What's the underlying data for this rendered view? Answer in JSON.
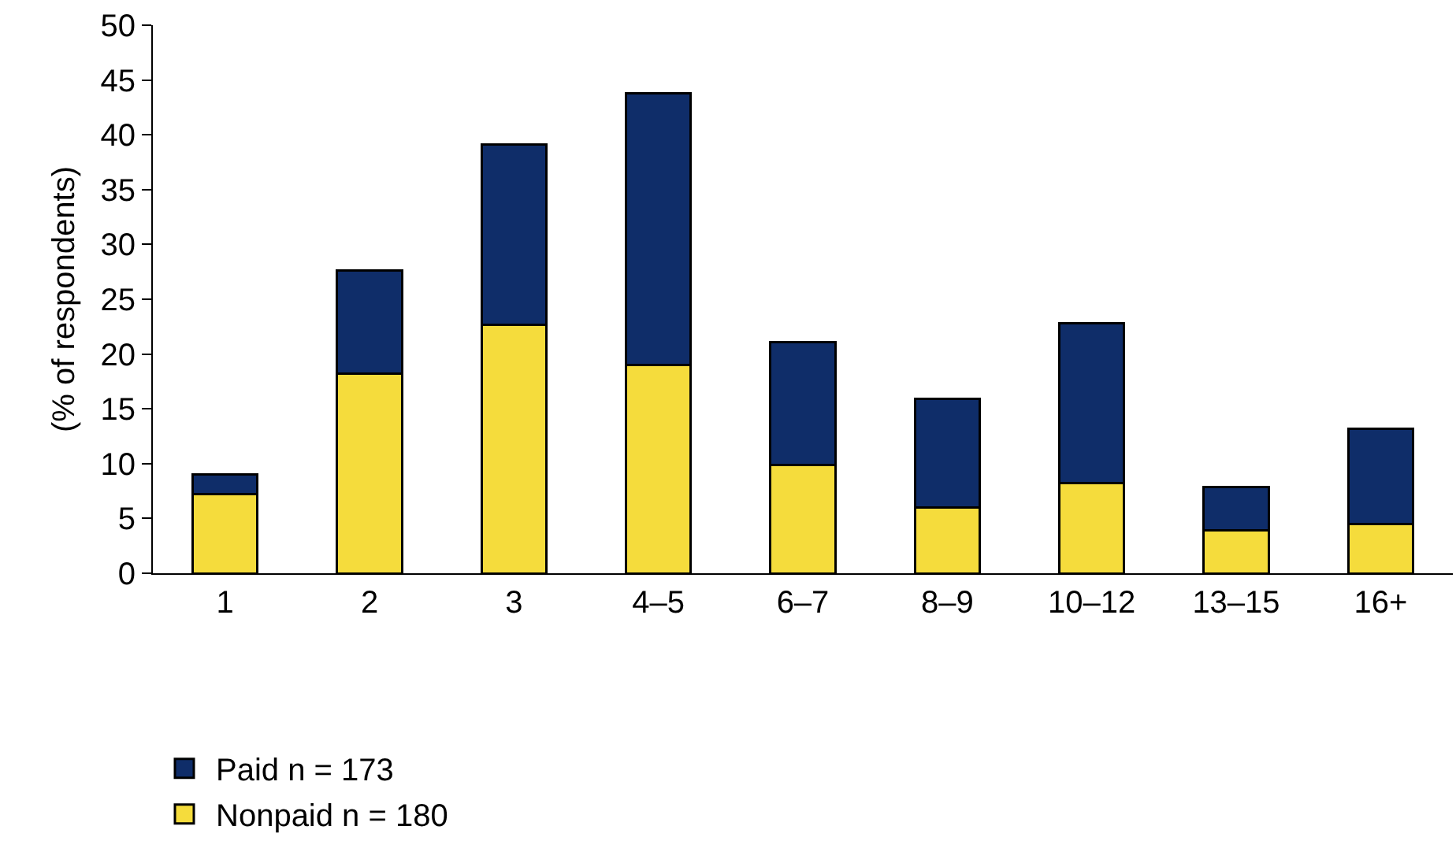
{
  "chart_data": {
    "type": "bar",
    "stacked": true,
    "ylabel": "(% of respondents)",
    "categories": [
      "1",
      "2",
      "3",
      "4–5",
      "6–7",
      "8–9",
      "10–12",
      "13–15",
      "16+"
    ],
    "series": [
      {
        "name": "Nonpaid n = 180",
        "color": "#f5dc3c",
        "values": [
          7.2,
          18.2,
          22.7,
          19.0,
          9.9,
          6.0,
          8.2,
          3.9,
          4.5
        ]
      },
      {
        "name": "Paid n = 173",
        "color": "#0f2d69",
        "values": [
          1.8,
          9.4,
          16.4,
          24.8,
          11.2,
          9.9,
          14.6,
          4.0,
          8.7
        ]
      }
    ],
    "ylim": [
      0,
      50
    ],
    "yticks": [
      0,
      5,
      10,
      15,
      20,
      25,
      30,
      35,
      40,
      45,
      50
    ],
    "grid": false,
    "legend": "bottom left"
  }
}
